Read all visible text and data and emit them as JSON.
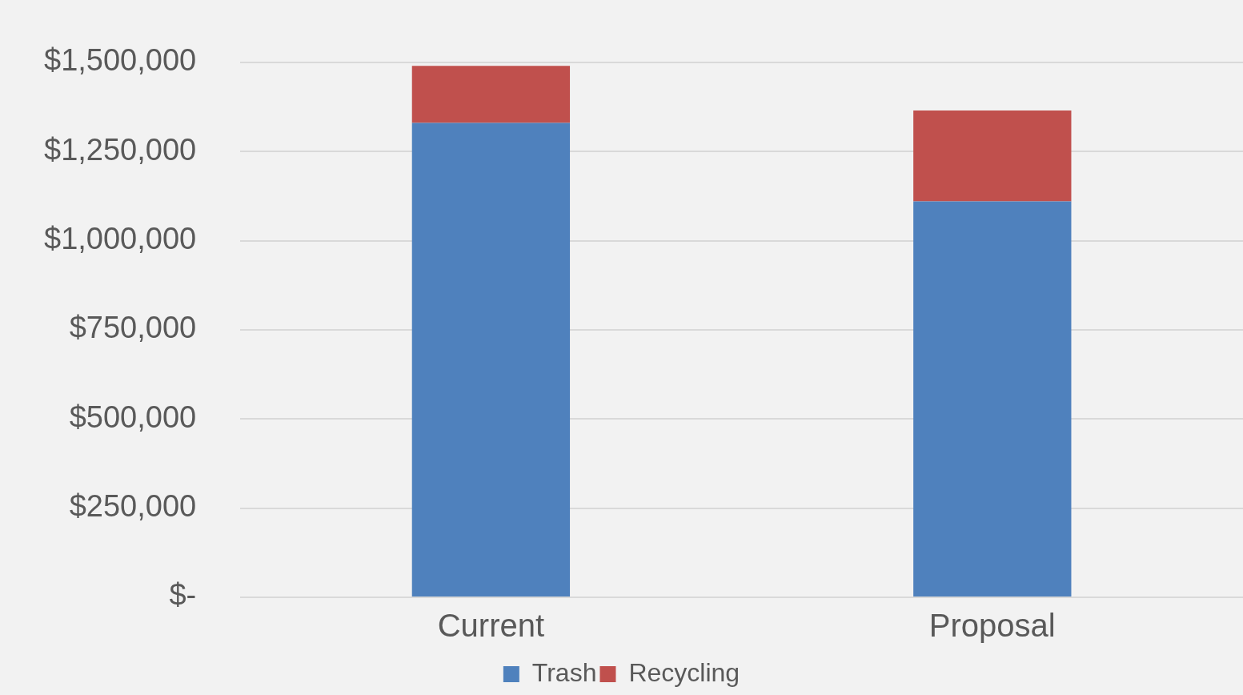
{
  "chart_data": {
    "type": "bar",
    "stacked": true,
    "categories": [
      "Current",
      "Proposal"
    ],
    "series": [
      {
        "name": "Trash",
        "color": "#4f81bd",
        "values": [
          1330000,
          1110000
        ]
      },
      {
        "name": "Recycling",
        "color": "#c0504d",
        "values": [
          160000,
          255000
        ]
      }
    ],
    "ylim": [
      0,
      1500000
    ],
    "yticks": [
      {
        "value": 0,
        "label": "$-"
      },
      {
        "value": 250000,
        "label": "$250,000"
      },
      {
        "value": 500000,
        "label": "$500,000"
      },
      {
        "value": 750000,
        "label": "$750,000"
      },
      {
        "value": 1000000,
        "label": "$1,000,000"
      },
      {
        "value": 1250000,
        "label": "$1,250,000"
      },
      {
        "value": 1500000,
        "label": "$1,500,000"
      }
    ],
    "grid": "y",
    "legend": "bottom"
  }
}
